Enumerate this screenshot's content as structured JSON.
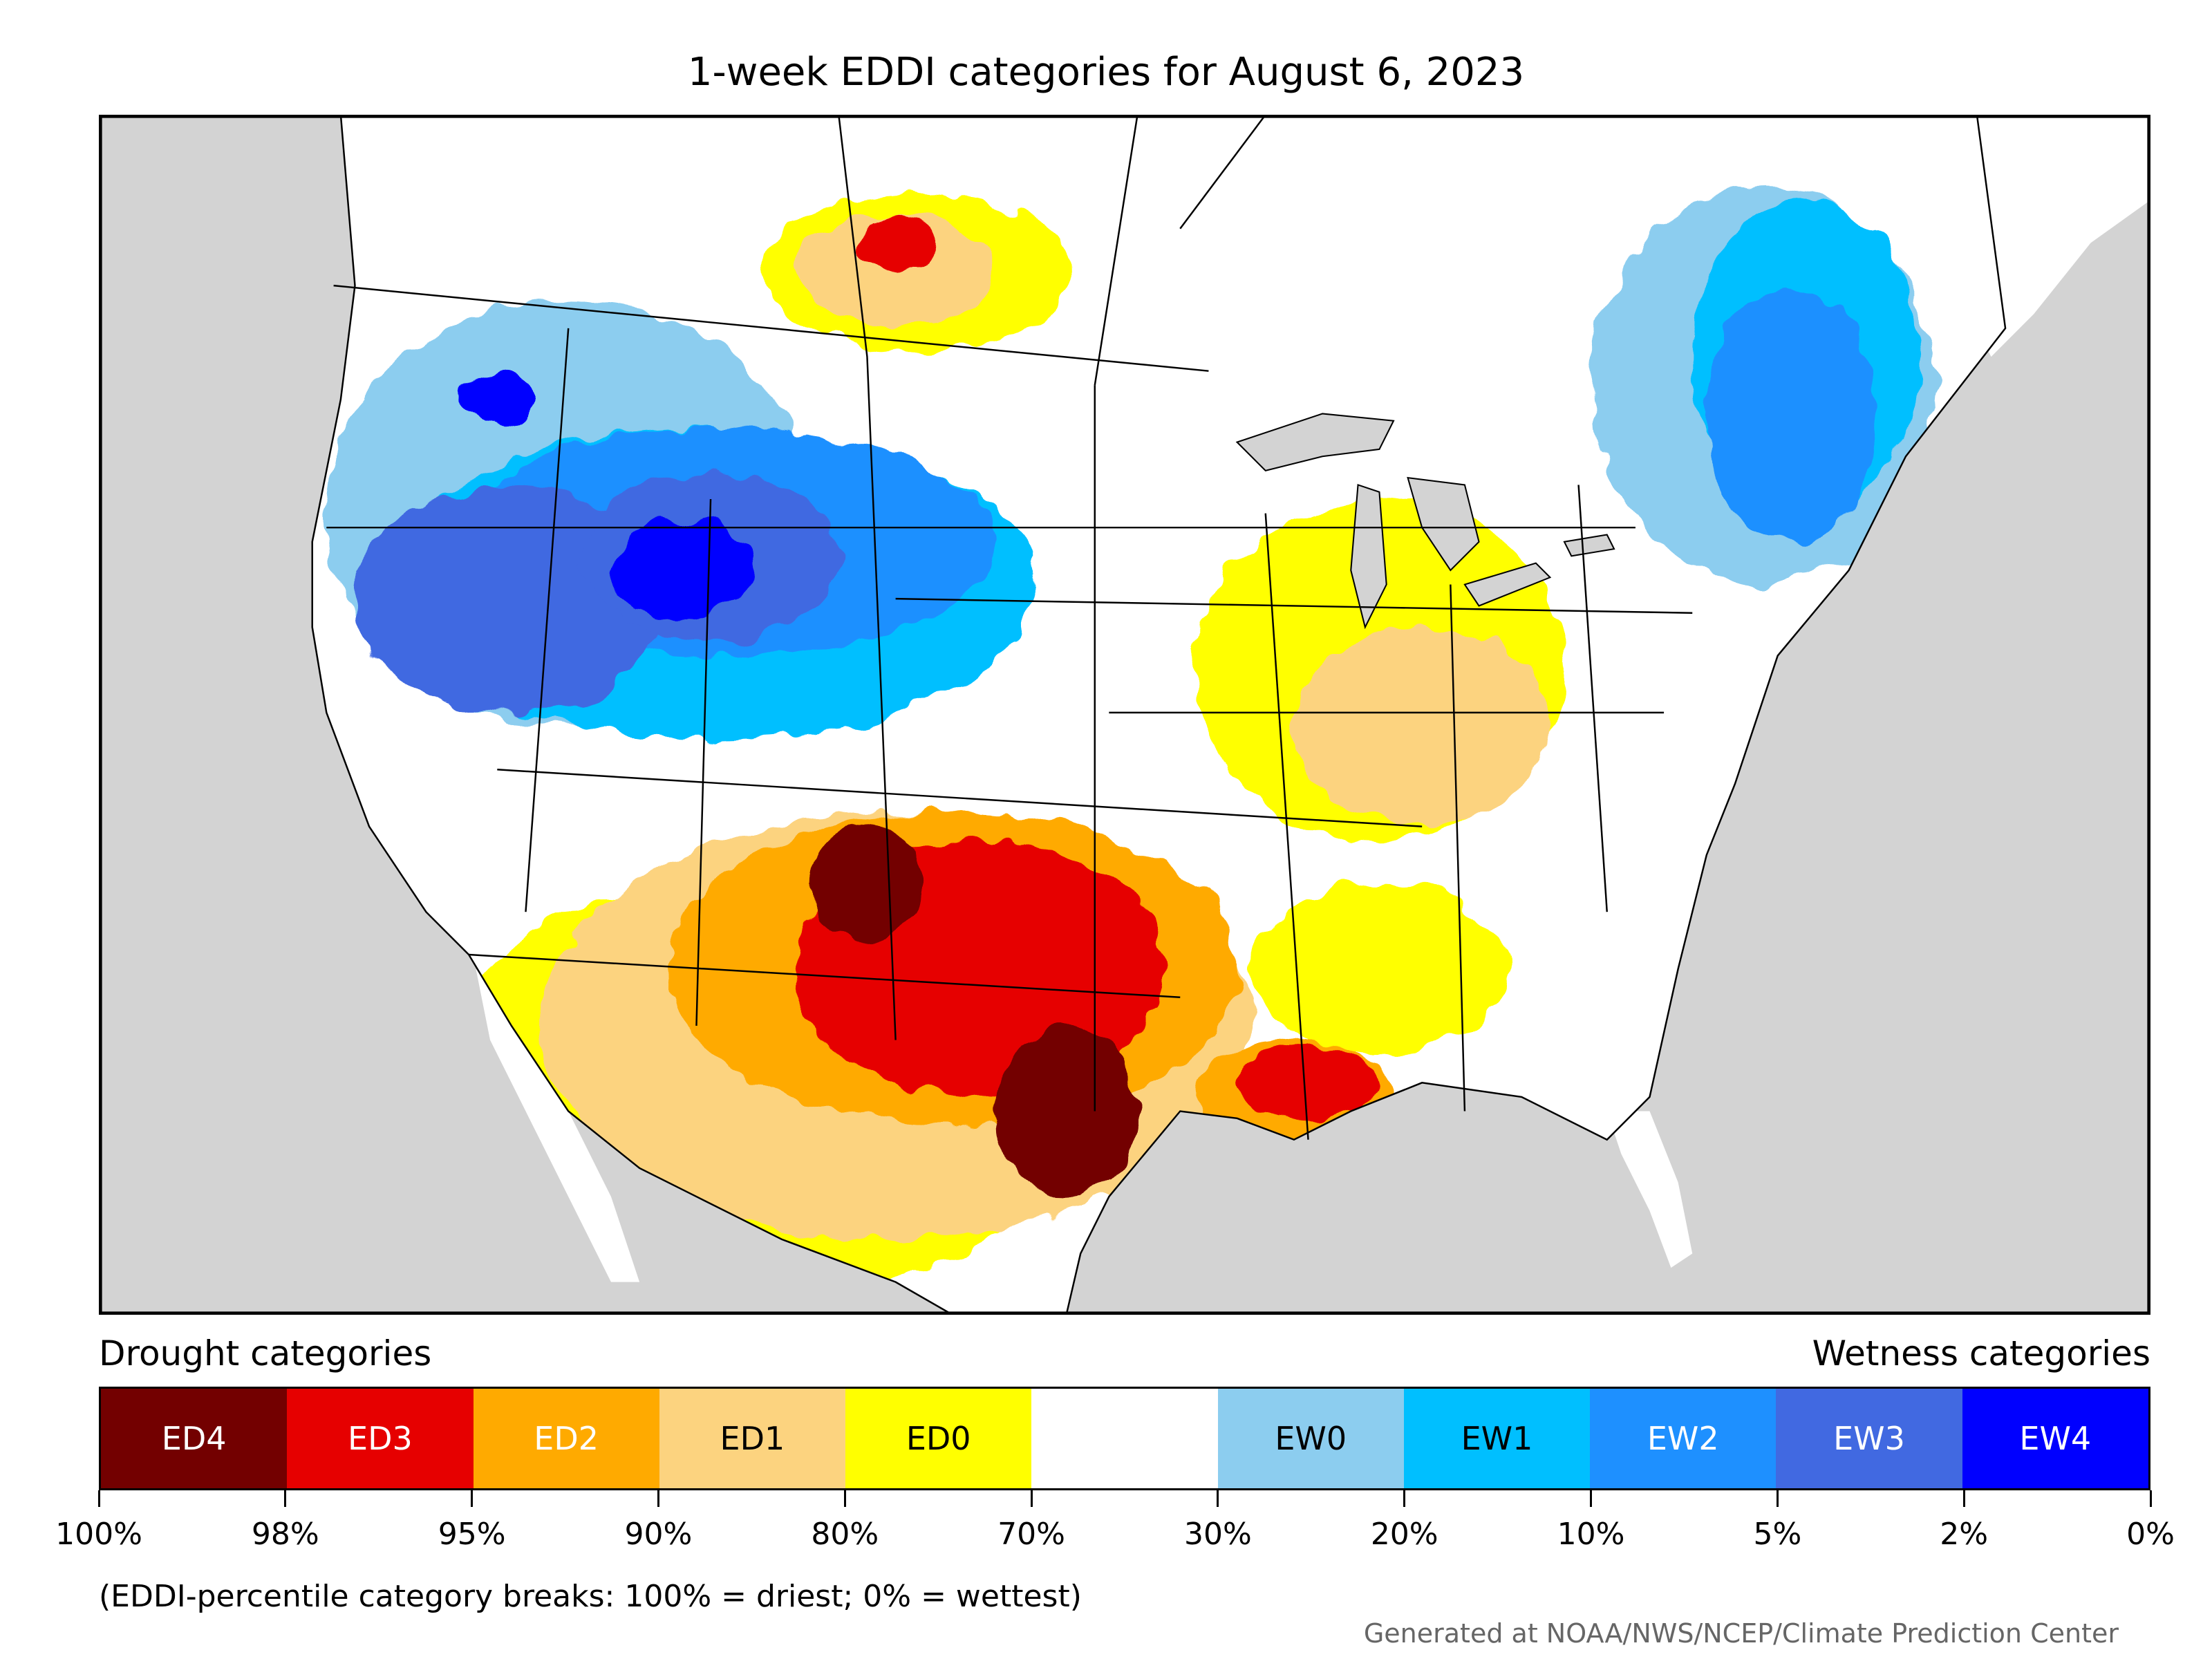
{
  "title": "1-week EDDI categories for August 6, 2023",
  "legend": {
    "drought_heading": "Drought categories",
    "wetness_heading": "Wetness categories",
    "categories": [
      {
        "label": "ED4",
        "color": "#730000",
        "text_color": "#ffffff"
      },
      {
        "label": "ED3",
        "color": "#e60000",
        "text_color": "#ffffff"
      },
      {
        "label": "ED2",
        "color": "#ffaa00",
        "text_color": "#ffffff"
      },
      {
        "label": "ED1",
        "color": "#fcd37f",
        "text_color": "#000000"
      },
      {
        "label": "ED0",
        "color": "#ffff00",
        "text_color": "#000000"
      },
      {
        "label": "",
        "color": "#ffffff",
        "text_color": "#000000"
      },
      {
        "label": "EW0",
        "color": "#8ccdef",
        "text_color": "#000000"
      },
      {
        "label": "EW1",
        "color": "#00bfff",
        "text_color": "#000000"
      },
      {
        "label": "EW2",
        "color": "#1e90ff",
        "text_color": "#ffffff"
      },
      {
        "label": "EW3",
        "color": "#4169e1",
        "text_color": "#ffffff"
      },
      {
        "label": "EW4",
        "color": "#0000ff",
        "text_color": "#ffffff"
      }
    ],
    "ticks": [
      "100%",
      "98%",
      "95%",
      "90%",
      "80%",
      "70%",
      "30%",
      "20%",
      "10%",
      "5%",
      "2%",
      "0%"
    ]
  },
  "note": "(EDDI-percentile category breaks: 100% = driest; 0% = wettest)",
  "credit": "Generated at NOAA/NWS/NCEP/Climate Prediction Center",
  "map": {
    "water_color": "#d3d3d3",
    "land_color": "#ffffff"
  }
}
